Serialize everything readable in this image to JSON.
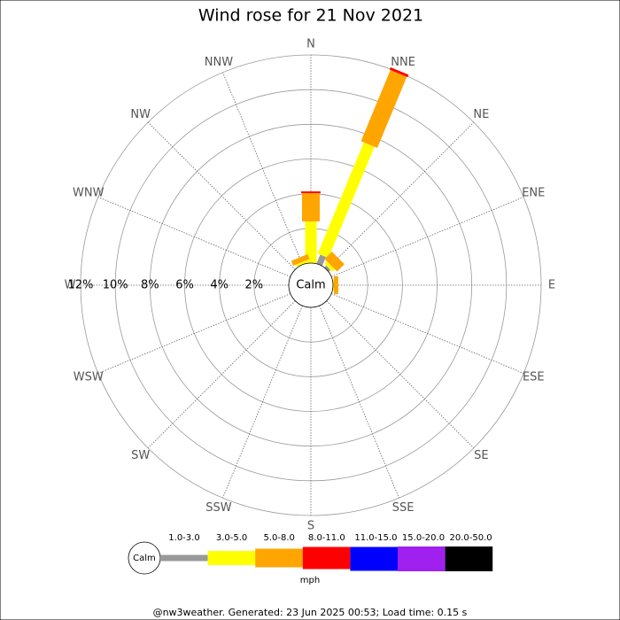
{
  "chart_data": {
    "type": "windrose",
    "title": "Wind rose for 21 Nov 2021",
    "directions": [
      "N",
      "NNE",
      "NE",
      "ENE",
      "E",
      "ESE",
      "SE",
      "SSE",
      "S",
      "SSW",
      "SW",
      "WSW",
      "W",
      "WNW",
      "NW",
      "NNW"
    ],
    "calm_label": "Calm",
    "rticks": [
      {
        "value": 2,
        "label": "2%"
      },
      {
        "value": 4,
        "label": "4%"
      },
      {
        "value": 6,
        "label": "6%"
      },
      {
        "value": 8,
        "label": "8%"
      },
      {
        "value": 10,
        "label": "10%"
      },
      {
        "value": 12,
        "label": "12%"
      }
    ],
    "rlim": [
      0,
      12
    ],
    "series": [
      {
        "name": "1.0-3.0",
        "color": "#999999",
        "values": [
          0,
          0.56,
          0.15,
          0,
          0,
          0,
          0,
          0,
          0,
          0,
          0,
          0,
          0,
          0,
          0,
          0
        ]
      },
      {
        "name": "3.0-5.0",
        "color": "#ffff00",
        "values": [
          2.4,
          6.94,
          0.2,
          0,
          0.05,
          0,
          0,
          0,
          0,
          0,
          0,
          0,
          0,
          0,
          0,
          0.15
        ]
      },
      {
        "name": "5.0-8.0",
        "color": "#ffa500",
        "values": [
          1.63,
          4.44,
          0.6,
          0,
          0.25,
          0,
          0,
          0,
          0,
          0,
          0,
          0,
          0,
          0,
          0,
          0.3
        ]
      },
      {
        "name": "8.0-11.0",
        "color": "#ff0000",
        "values": [
          0.1,
          0.15,
          0,
          0,
          0,
          0,
          0,
          0,
          0,
          0,
          0,
          0,
          0,
          0,
          0,
          0
        ]
      },
      {
        "name": "11.0-15.0",
        "color": "#0000ff",
        "values": [
          0,
          0,
          0,
          0,
          0,
          0,
          0,
          0,
          0,
          0,
          0,
          0,
          0,
          0,
          0,
          0
        ]
      },
      {
        "name": "15.0-20.0",
        "color": "#a020f0",
        "values": [
          0,
          0,
          0,
          0,
          0,
          0,
          0,
          0,
          0,
          0,
          0,
          0,
          0,
          0,
          0,
          0
        ]
      },
      {
        "name": "20.0-50.0",
        "color": "#000000",
        "values": [
          0,
          0,
          0,
          0,
          0,
          0,
          0,
          0,
          0,
          0,
          0,
          0,
          0,
          0,
          0,
          0
        ]
      }
    ],
    "legend_unit": "mph",
    "footer": "@nw3weather. Generated: 23 Jun 2025 00:53; Load time: 0.15 s"
  }
}
